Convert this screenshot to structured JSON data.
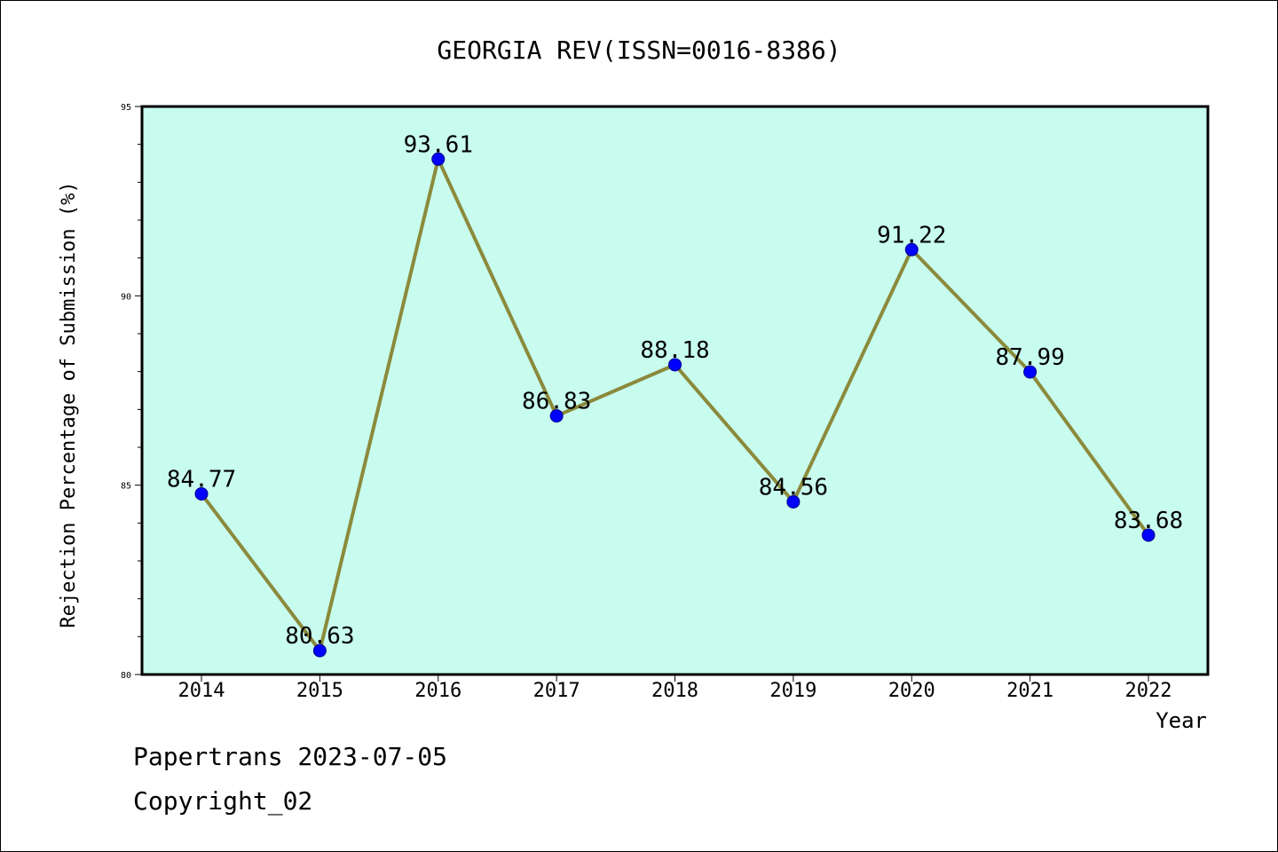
{
  "chart_data": {
    "type": "line",
    "title": "GEORGIA REV(ISSN=0016-8386)",
    "xlabel": "Year",
    "ylabel": "Rejection Percentage of Submission (%)",
    "categories": [
      "2014",
      "2015",
      "2016",
      "2017",
      "2018",
      "2019",
      "2020",
      "2021",
      "2022"
    ],
    "series": [
      {
        "values": [
          84.77,
          80.63,
          93.61,
          86.83,
          88.18,
          84.56,
          91.22,
          87.99,
          83.68
        ],
        "labels": [
          "84.77",
          "80.63",
          "93.61",
          "86.83",
          "88.18",
          "84.56",
          "91.22",
          "87.99",
          "83.68"
        ]
      }
    ],
    "ylim": [
      80,
      95
    ],
    "yticks": [
      "80",
      "85",
      "90",
      "95"
    ],
    "grid": false,
    "colors": {
      "plot_background": "#c8fcee",
      "line": "#8b8a3c",
      "marker": "#0000ff"
    }
  },
  "footer": {
    "line1": "Papertrans 2023-07-05",
    "line2": "Copyright_02"
  }
}
